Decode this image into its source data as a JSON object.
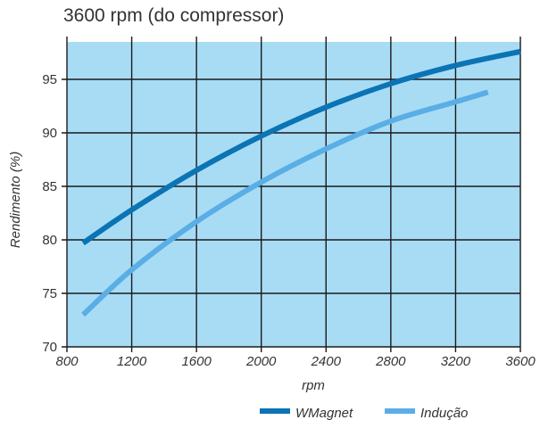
{
  "title": "3600 rpm (do compressor)",
  "chart_data": {
    "type": "line",
    "title": "3600 rpm (do compressor)",
    "xlabel": "rpm",
    "ylabel": "Rendimento (%)",
    "xlim": [
      800,
      3600
    ],
    "ylim": [
      70,
      100
    ],
    "xticks": [
      "800",
      "1200",
      "1600",
      "2000",
      "2400",
      "2800",
      "3200",
      "3600"
    ],
    "yticks": [
      "70",
      "75",
      "80",
      "85",
      "90",
      "95"
    ],
    "grid": true,
    "background_color": "#A8DCF5",
    "legend_position": "bottom",
    "series": [
      {
        "name": "WMagnet",
        "color": "#0A74B4",
        "x": [
          900,
          1200,
          1600,
          2000,
          2400,
          2800,
          3200,
          3600
        ],
        "y": [
          79.7,
          82.8,
          86.5,
          89.7,
          92.4,
          94.6,
          96.3,
          97.6
        ]
      },
      {
        "name": "Indução",
        "color": "#5AAEE6",
        "x": [
          900,
          1200,
          1600,
          2000,
          2400,
          2800,
          3200,
          3400
        ],
        "y": [
          73.0,
          77.2,
          81.7,
          85.4,
          88.5,
          91.1,
          92.9,
          93.8
        ]
      }
    ]
  }
}
